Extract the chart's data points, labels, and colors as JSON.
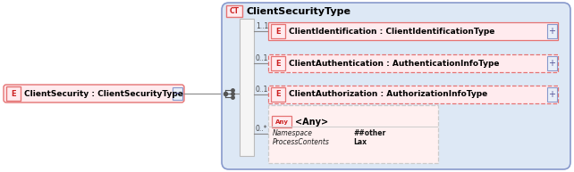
{
  "main_bg": "#ffffff",
  "element_fill": "#ffebee",
  "element_border": "#e57373",
  "ct_box_bg": "#dde8f5",
  "ct_box_border": "#8899cc",
  "seq_bar_fill": "#f5f5f5",
  "seq_bar_border": "#bbbbbb",
  "plus_fill": "#e8eef8",
  "plus_border": "#8899cc",
  "any_fill": "#fff0f0",
  "any_border": "#cccccc",
  "line_color": "#888888",
  "text_dark": "#000000",
  "text_red": "#cc2222",
  "text_gray": "#444444",
  "title": "ClientSecurityType",
  "ct_label": "CT",
  "left_label": "E",
  "left_text": "ClientSecurity : ClientSecurityType",
  "elements": [
    {
      "text": "ClientIdentification : ClientIdentificationType",
      "mult": "1..1",
      "dashed": false
    },
    {
      "text": "ClientAuthentication : AuthenticationInfoType",
      "mult": "0..1",
      "dashed": true
    },
    {
      "text": "ClientAuthorization : AuthorizationInfoType",
      "mult": "0..1",
      "dashed": true
    }
  ],
  "any_label": "Any",
  "any_text": "<Any>",
  "any_mult": "0..*",
  "ns_label": "Namespace",
  "ns_value": "##other",
  "pc_label": "ProcessContents",
  "pc_value": "Lax",
  "figsize": [
    6.42,
    1.93
  ],
  "dpi": 100
}
